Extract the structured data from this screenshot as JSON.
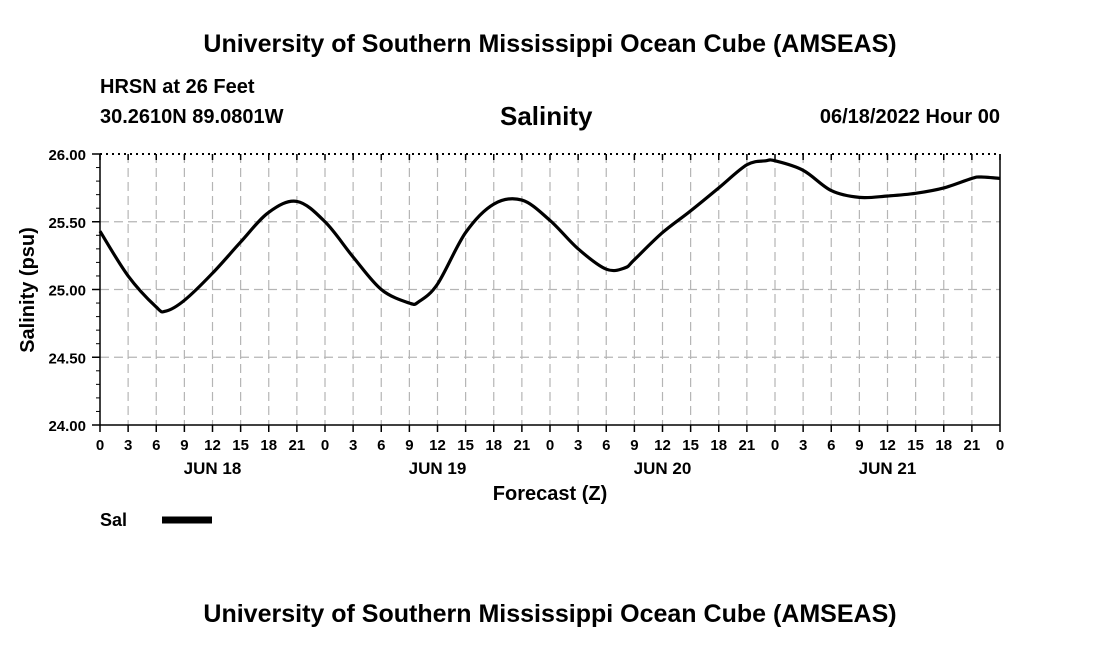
{
  "header": {
    "title": "University of Southern Mississippi Ocean Cube (AMSEAS)",
    "station": "HRSN at 26 Feet",
    "location": "30.2610N  89.0801W",
    "variable": "Salinity",
    "datetime": "06/18/2022 Hour 00"
  },
  "footer": {
    "title": "University of Southern Mississippi Ocean Cube (AMSEAS)"
  },
  "chart_data": {
    "type": "line",
    "title": "Salinity",
    "xlabel": "Forecast (Z)",
    "ylabel": "Salinity (psu)",
    "xlim": [
      0,
      96
    ],
    "ylim": [
      24.0,
      26.0
    ],
    "y_ticks": [
      "24.00",
      "24.50",
      "25.00",
      "25.50",
      "26.00"
    ],
    "x_ticks": [
      "0",
      "3",
      "6",
      "9",
      "12",
      "15",
      "18",
      "21",
      "0",
      "3",
      "6",
      "9",
      "12",
      "15",
      "18",
      "21",
      "0",
      "3",
      "6",
      "9",
      "12",
      "15",
      "18",
      "21",
      "0",
      "3",
      "6",
      "9",
      "12",
      "15",
      "18",
      "21",
      "0"
    ],
    "day_labels": [
      {
        "label": "JUN 18",
        "hour": 12
      },
      {
        "label": "JUN 19",
        "hour": 36
      },
      {
        "label": "JUN 20",
        "hour": 60
      },
      {
        "label": "JUN 21",
        "hour": 84
      }
    ],
    "grid": true,
    "legend": "bottom-left",
    "series": [
      {
        "name": "Sal",
        "color": "#000000",
        "x": [
          0,
          3,
          6,
          7,
          9,
          12,
          15,
          18,
          21,
          24,
          27,
          30,
          33,
          34,
          36,
          39,
          42,
          45,
          48,
          51,
          54,
          56,
          57,
          60,
          63,
          66,
          69,
          71,
          72,
          75,
          78,
          81,
          84,
          87,
          90,
          93,
          94,
          96
        ],
        "values": [
          25.43,
          25.1,
          24.87,
          24.84,
          24.92,
          25.12,
          25.35,
          25.57,
          25.65,
          25.5,
          25.24,
          25.0,
          24.9,
          24.91,
          25.04,
          25.42,
          25.63,
          25.66,
          25.51,
          25.3,
          25.15,
          25.16,
          25.22,
          25.42,
          25.58,
          25.75,
          25.92,
          25.95,
          25.95,
          25.88,
          25.73,
          25.68,
          25.69,
          25.71,
          25.75,
          25.82,
          25.83,
          25.82
        ]
      }
    ]
  }
}
